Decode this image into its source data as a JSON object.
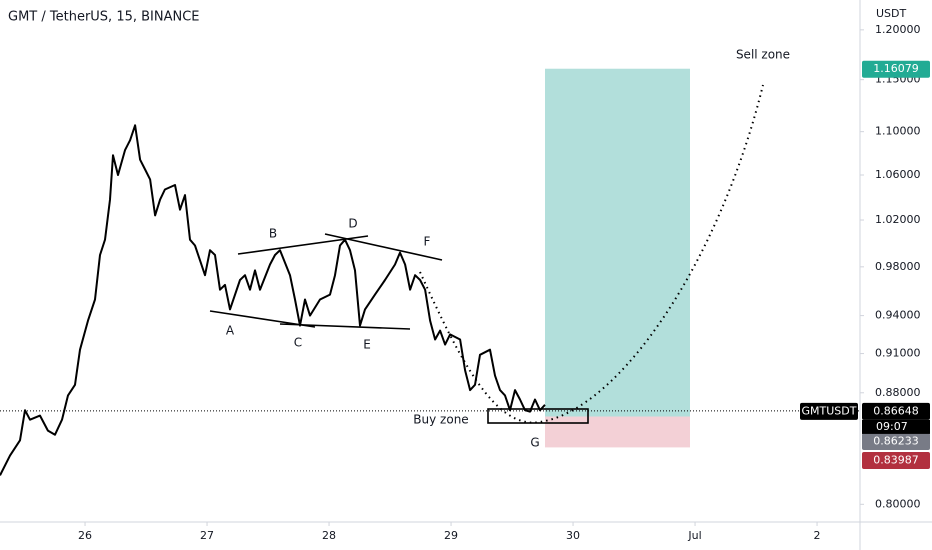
{
  "chart_data": {
    "type": "line",
    "title": "GMT / TetherUS, 15, BINANCE",
    "y_unit": "USDT",
    "log_scale": true,
    "xlim": [
      25.303,
      32.352
    ],
    "xticks": [
      26,
      27,
      28,
      29,
      30,
      {
        "value": 31,
        "label": "Jul"
      },
      {
        "value": 32,
        "label": "2"
      }
    ],
    "ylim": [
      0.788,
      1.231
    ],
    "yticks": [
      {
        "value": 1.2,
        "label": "1.20000"
      },
      {
        "value": 1.15,
        "label": "1.15000"
      },
      {
        "value": 1.1,
        "label": "1.10000"
      },
      {
        "value": 1.06,
        "label": "1.06000"
      },
      {
        "value": 1.02,
        "label": "1.02000"
      },
      {
        "value": 0.98,
        "label": "0.98000"
      },
      {
        "value": 0.94,
        "label": "0.94000"
      },
      {
        "value": 0.91,
        "label": "0.91000"
      },
      {
        "value": 0.88,
        "label": "0.88000"
      },
      {
        "value": 0.8,
        "label": "0.80000"
      }
    ],
    "x": [
      25.303,
      25.385,
      25.467,
      25.508,
      25.549,
      25.631,
      25.696,
      25.754,
      25.811,
      25.86,
      25.918,
      25.959,
      26.024,
      26.082,
      26.123,
      26.164,
      26.205,
      26.229,
      26.27,
      26.328,
      26.369,
      26.41,
      26.451,
      26.492,
      26.533,
      26.574,
      26.615,
      26.655,
      26.737,
      26.778,
      26.819,
      26.86,
      26.901,
      26.983,
      27.024,
      27.065,
      27.106,
      27.147,
      27.188,
      27.27,
      27.311,
      27.352,
      27.393,
      27.434,
      27.516,
      27.557,
      27.598,
      27.68,
      27.721,
      27.762,
      27.803,
      27.844,
      27.926,
      28.008,
      28.049,
      28.09,
      28.131,
      28.172,
      28.213,
      28.254,
      28.295,
      28.377,
      28.459,
      28.541,
      28.582,
      28.623,
      28.664,
      28.705,
      28.746,
      28.787,
      28.828,
      28.869,
      28.91,
      28.951,
      28.992,
      29.074,
      29.115,
      29.156,
      29.196,
      29.237,
      29.319,
      29.36,
      29.401,
      29.442,
      29.483,
      29.524,
      29.565,
      29.606,
      29.647,
      29.688,
      29.729,
      29.77
    ],
    "series": [
      {
        "name": "GMTUSDT",
        "color": "#000000",
        "values": [
          0.82,
          0.834,
          0.845,
          0.867,
          0.86,
          0.863,
          0.852,
          0.849,
          0.86,
          0.878,
          0.886,
          0.913,
          0.936,
          0.953,
          0.99,
          1.003,
          1.038,
          1.078,
          1.06,
          1.083,
          1.092,
          1.106,
          1.074,
          1.065,
          1.056,
          1.024,
          1.038,
          1.047,
          1.051,
          1.029,
          1.042,
          1.003,
          0.998,
          0.973,
          0.994,
          0.99,
          0.961,
          0.965,
          0.945,
          0.969,
          0.973,
          0.961,
          0.977,
          0.961,
          0.982,
          0.99,
          0.994,
          0.973,
          0.953,
          0.932,
          0.953,
          0.94,
          0.953,
          0.957,
          0.973,
          0.998,
          1.003,
          0.994,
          0.977,
          0.932,
          0.945,
          0.957,
          0.969,
          0.982,
          0.992,
          0.982,
          0.961,
          0.973,
          0.969,
          0.961,
          0.936,
          0.921,
          0.928,
          0.917,
          0.925,
          0.921,
          0.897,
          0.882,
          0.886,
          0.909,
          0.913,
          0.893,
          0.882,
          0.878,
          0.867,
          0.882,
          0.875,
          0.867,
          0.866,
          0.875,
          0.867,
          0.871
        ]
      }
    ],
    "price_labels": [
      {
        "value": 1.16079,
        "label": "1.16079",
        "color": "#22ab94"
      },
      {
        "value": 0.86648,
        "label": "0.86648",
        "color": "#000000"
      },
      {
        "value": 0.86233,
        "label": "0.86233",
        "color": "#787b86"
      },
      {
        "value": 0.83987,
        "label": "0.83987",
        "color": "#b2303f"
      }
    ],
    "countdown": "09:07",
    "annotations": {
      "points": [
        "A",
        "B",
        "C",
        "D",
        "E",
        "F",
        "G"
      ],
      "buy": "Buy zone",
      "sell": "Sell zone"
    }
  }
}
